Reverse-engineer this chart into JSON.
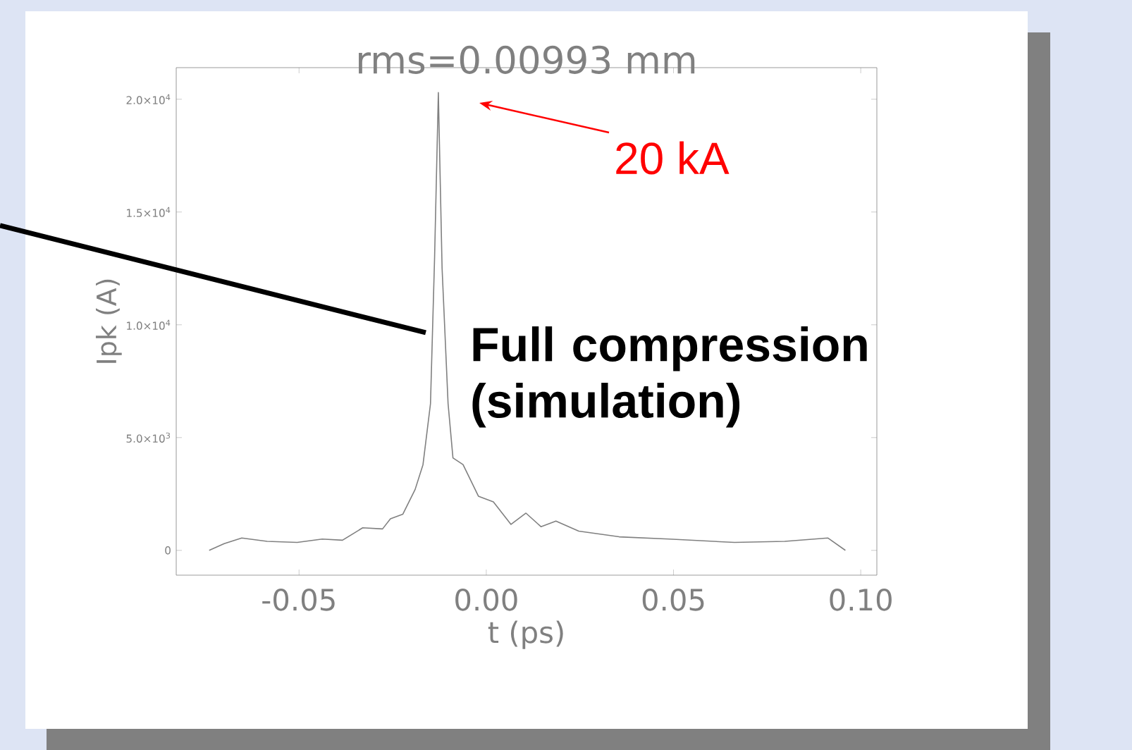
{
  "chart_data": {
    "type": "line",
    "title": "rms=0.00993 mm",
    "xlabel": "t (ps)",
    "ylabel": "Ipk (A)",
    "x": [
      -0.074,
      -0.07,
      -0.0653,
      -0.0585,
      -0.0505,
      -0.0438,
      -0.0384,
      -0.033,
      -0.0277,
      -0.0256,
      -0.0223,
      -0.019,
      -0.0169,
      -0.0149,
      -0.0138,
      -0.0128,
      -0.0118,
      -0.0102,
      -0.0089,
      -0.0062,
      -0.0021,
      0.0019,
      0.0066,
      0.0106,
      0.0146,
      0.0186,
      0.0247,
      0.0355,
      0.0489,
      0.0663,
      0.0797,
      0.0912,
      0.0959
    ],
    "series": [
      {
        "color": "#808080",
        "values": [
          0,
          300,
          550,
          400,
          350,
          500,
          450,
          1000,
          950,
          1400,
          1600,
          2700,
          3800,
          6500,
          13000,
          20300,
          12500,
          6500,
          4100,
          3800,
          2400,
          2150,
          1150,
          1650,
          1050,
          1300,
          850,
          600,
          500,
          350,
          400,
          550,
          0
        ]
      }
    ],
    "xlim": [
      -0.0828,
      0.1043
    ],
    "ylim": [
      -1100,
      21400
    ],
    "xticks": [
      {
        "value": -0.05,
        "label": "-0.05"
      },
      {
        "value": 0,
        "label": "0.00"
      },
      {
        "value": 0.05,
        "label": "0.05"
      },
      {
        "value": 0.1,
        "label": "0.10"
      }
    ],
    "yticks": [
      0,
      {
        "value": 5000,
        "label": "5.0×10$^{3}$"
      },
      {
        "value": 10000,
        "label": "1.0×10$^{4}$"
      },
      {
        "value": 15000,
        "label": "1.5×10$^{4}$"
      },
      {
        "value": 20000,
        "label": "2.0×10$^{4}$"
      }
    ],
    "annotations": [
      "20 kA",
      "Full compression (simulation)"
    ]
  }
}
